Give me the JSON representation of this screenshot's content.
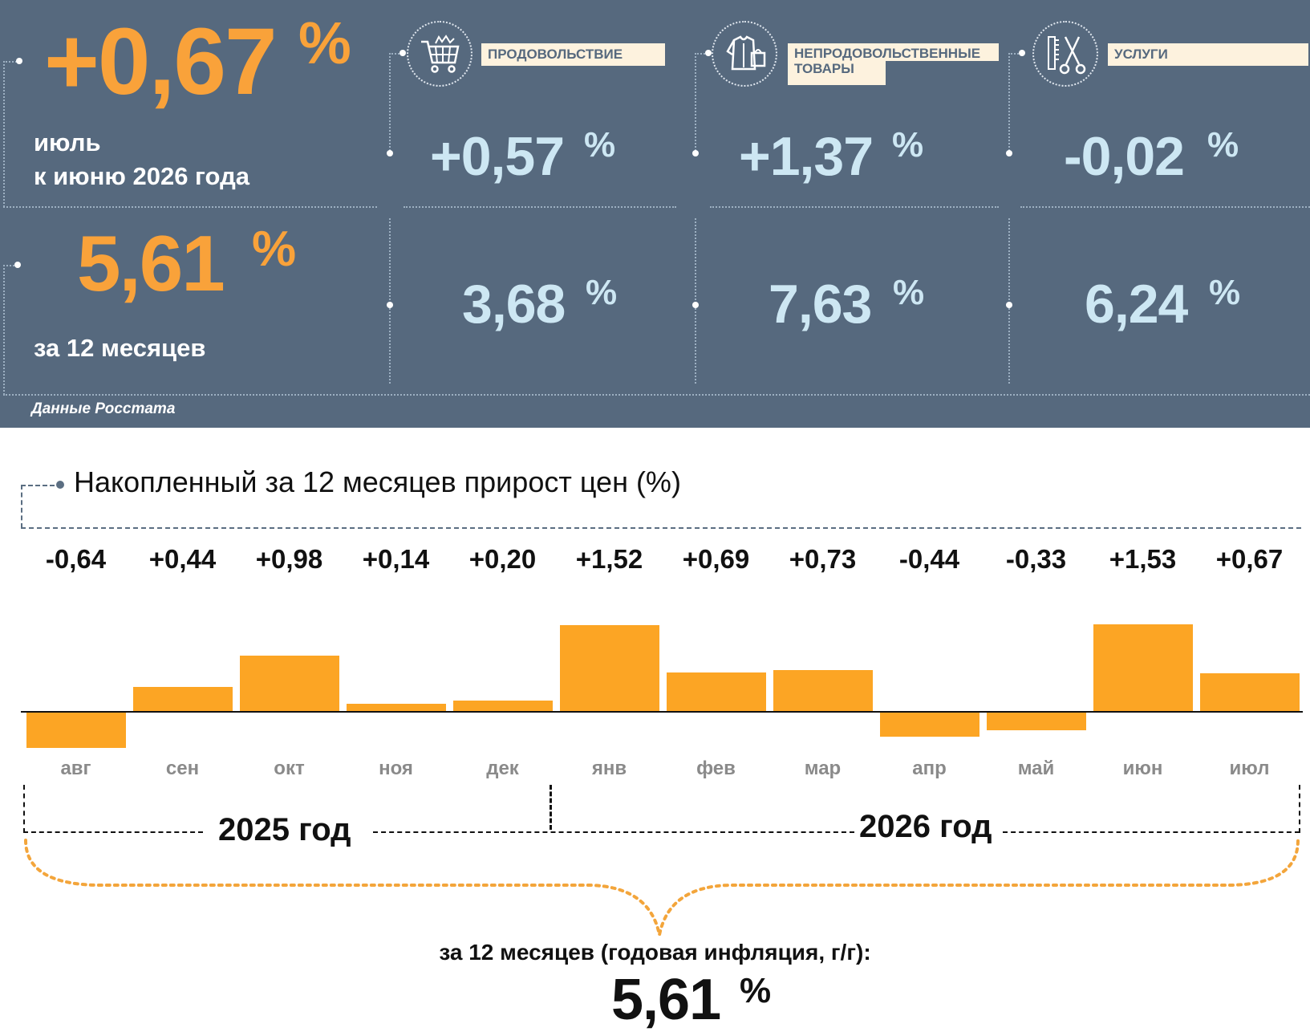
{
  "panel": {
    "main_change": "+0,67",
    "main_change_unit": "%",
    "main_period_line1": "июль",
    "main_period_line2": "к июню 2026 года",
    "annual_value": "5,61",
    "annual_unit": "%",
    "annual_label": "за 12 месяцев",
    "source": "Данные Росстата",
    "categories": [
      {
        "label": "ПРОДОВОЛЬСТВИЕ",
        "icon": "shopping-cart-icon",
        "monthly": "+0,57",
        "annual": "3,68",
        "unit": "%"
      },
      {
        "label": "НЕПРОДОВОЛЬСТВЕННЫЕ ТОВАРЫ",
        "label_line1": "НЕПРОДОВОЛЬСТВЕННЫЕ",
        "label_line2": "ТОВАРЫ",
        "icon": "clothing-bag-icon",
        "monthly": "+1,37",
        "annual": "7,63",
        "unit": "%"
      },
      {
        "label": "УСЛУГИ",
        "icon": "comb-scissors-icon",
        "monthly": "-0,02",
        "annual": "6,24",
        "unit": "%"
      }
    ]
  },
  "chart_data": {
    "type": "bar",
    "title": "Накопленный за 12 месяцев прирост цен (%)",
    "categories": [
      "авг",
      "сен",
      "окт",
      "ноя",
      "дек",
      "янв",
      "фев",
      "мар",
      "апр",
      "май",
      "июн",
      "июл"
    ],
    "values": [
      -0.64,
      0.44,
      0.98,
      0.14,
      0.2,
      1.52,
      0.69,
      0.73,
      -0.44,
      -0.33,
      1.53,
      0.67
    ],
    "value_labels": [
      "-0,64",
      "+0,44",
      "+0,98",
      "+0,14",
      "+0,20",
      "+1,52",
      "+0,69",
      "+0,73",
      "-0,44",
      "-0,33",
      "+1,53",
      "+0,67"
    ],
    "groups": [
      {
        "label": "2025 год",
        "months": [
          "авг",
          "сен",
          "окт",
          "ноя",
          "дек"
        ]
      },
      {
        "label": "2026 год",
        "months": [
          "янв",
          "фев",
          "мар",
          "апр",
          "май",
          "июн",
          "июл"
        ]
      }
    ],
    "bar_color": "#fca524",
    "summary_label": "за 12 месяцев (годовая инфляция, г/г):",
    "summary_value": "5,61",
    "summary_unit": "%"
  }
}
